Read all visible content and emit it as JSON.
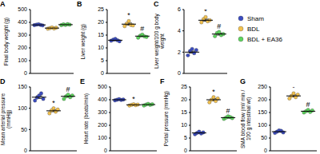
{
  "chart_data": [
    {
      "panel": "A",
      "type": "scatter",
      "y_label": "Final body weight (g)",
      "ylim": [
        0,
        500
      ],
      "yticks": [
        0,
        100,
        200,
        300,
        400,
        500
      ],
      "tick_labels": "y",
      "series": [
        {
          "name": "Sham",
          "color": "#3b4cc0",
          "values": [
            378,
            382,
            385,
            380,
            376
          ],
          "mean": 380,
          "error": 2
        },
        {
          "name": "BDL",
          "color": "#f2c14e",
          "values": [
            350,
            355,
            360,
            352,
            358
          ],
          "mean": 355,
          "error": 2
        },
        {
          "name": "BDL + EA36",
          "color": "#5dd55d",
          "values": [
            378,
            384,
            380,
            386,
            382
          ],
          "mean": 382,
          "error": 2
        }
      ]
    },
    {
      "panel": "B",
      "type": "scatter",
      "y_label": "Liver weight (g)",
      "ylim": [
        0,
        25
      ],
      "yticks": [
        0,
        5,
        10,
        15,
        20,
        25
      ],
      "tick_labels": "y",
      "series": [
        {
          "name": "Sham",
          "color": "#3b4cc0",
          "values": [
            12.8,
            13.2,
            13.5,
            13.0,
            12.6
          ],
          "mean": 13,
          "error": 0.2
        },
        {
          "name": "BDL",
          "color": "#f2c14e",
          "values": [
            18.5,
            19.5,
            20.5,
            19.0,
            18.8
          ],
          "mean": 19.3,
          "error": 0.4,
          "annotation": "*"
        },
        {
          "name": "BDL + EA36",
          "color": "#5dd55d",
          "values": [
            14.0,
            14.8,
            15.2,
            14.5,
            14.3
          ],
          "mean": 14.6,
          "error": 0.2,
          "annotation": "#"
        }
      ]
    },
    {
      "panel": "C",
      "type": "scatter",
      "y_label": "Liver weight/100 g body weight",
      "ylim": [
        0,
        6
      ],
      "yticks": [
        0,
        2,
        4,
        6
      ],
      "tick_labels": "y",
      "legend": "right",
      "series": [
        {
          "name": "Sham",
          "color": "#3b4cc0",
          "values": [
            1.7,
            2.1,
            2.3,
            1.9,
            2.2
          ],
          "mean": 2.0,
          "error": 0.1
        },
        {
          "name": "BDL",
          "color": "#f2c14e",
          "values": [
            4.8,
            5.1,
            5.3,
            4.9,
            5.0
          ],
          "mean": 5.0,
          "error": 0.1,
          "annotation": "*"
        },
        {
          "name": "BDL + EA36",
          "color": "#5dd55d",
          "values": [
            3.5,
            3.8,
            3.9,
            3.6,
            3.7
          ],
          "mean": 3.7,
          "error": 0.1,
          "annotation": "#"
        }
      ]
    },
    {
      "panel": "D",
      "type": "scatter",
      "y_label": "Mean arterial pressure (mmHg)",
      "ylim": [
        0,
        150
      ],
      "yticks": [
        0,
        50,
        100,
        150
      ],
      "tick_labels": "y",
      "series": [
        {
          "name": "Sham",
          "color": "#3b4cc0",
          "values": [
            118,
            125,
            130,
            135,
            122
          ],
          "mean": 126,
          "error": 3
        },
        {
          "name": "BDL",
          "color": "#f2c14e",
          "values": [
            88,
            95,
            100,
            92,
            97
          ],
          "mean": 94,
          "error": 2,
          "annotation": "*"
        },
        {
          "name": "BDL + EA36",
          "color": "#5dd55d",
          "values": [
            122,
            128,
            132,
            126,
            130
          ],
          "mean": 128,
          "error": 2,
          "annotation": "#"
        }
      ]
    },
    {
      "panel": "E",
      "type": "scatter",
      "y_label": "Heart rate (beats/min)",
      "ylim": [
        0,
        500
      ],
      "yticks": [
        0,
        100,
        200,
        300,
        400,
        500
      ],
      "tick_labels": "y",
      "series": [
        {
          "name": "Sham",
          "color": "#3b4cc0",
          "values": [
            395,
            400,
            405,
            398,
            402
          ],
          "mean": 400,
          "error": 2
        },
        {
          "name": "BDL",
          "color": "#f2c14e",
          "values": [
            355,
            360,
            365,
            358,
            362
          ],
          "mean": 360,
          "error": 2,
          "annotation": "*"
        },
        {
          "name": "BDL + EA36",
          "color": "#5dd55d",
          "values": [
            355,
            362,
            368,
            360,
            365
          ],
          "mean": 362,
          "error": 2
        }
      ]
    },
    {
      "panel": "F",
      "type": "scatter",
      "y_label": "Portal pressure (mmHg)",
      "ylim": [
        0,
        25
      ],
      "yticks": [
        0,
        5,
        10,
        15,
        20,
        25
      ],
      "tick_labels": "y",
      "series": [
        {
          "name": "Sham",
          "color": "#3b4cc0",
          "values": [
            6.5,
            7.0,
            7.5,
            6.8,
            7.2
          ],
          "mean": 7,
          "error": 0.2
        },
        {
          "name": "BDL",
          "color": "#f2c14e",
          "values": [
            19,
            20,
            21,
            19.5,
            20.5
          ],
          "mean": 20,
          "error": 0.4,
          "annotation": "*"
        },
        {
          "name": "BDL + EA36",
          "color": "#5dd55d",
          "values": [
            12.5,
            13,
            13.5,
            13.2,
            12.8
          ],
          "mean": 13,
          "error": 0.2,
          "annotation": "#"
        }
      ]
    },
    {
      "panel": "G",
      "type": "scatter",
      "y_label": "SMA blood flow (ml/ min / 100 g intestinal wt)",
      "ylim": [
        0,
        250
      ],
      "yticks": [
        0,
        50,
        100,
        150,
        200,
        250
      ],
      "tick_labels": "y",
      "series": [
        {
          "name": "Sham",
          "color": "#3b4cc0",
          "values": [
            70,
            75,
            80,
            78,
            72
          ],
          "mean": 75,
          "error": 2
        },
        {
          "name": "BDL",
          "color": "#f2c14e",
          "values": [
            205,
            215,
            225,
            210,
            220
          ],
          "mean": 215,
          "error": 4,
          "annotation": "*"
        },
        {
          "name": "BDL + EA36",
          "color": "#5dd55d",
          "values": [
            150,
            155,
            160,
            152,
            158
          ],
          "mean": 155,
          "error": 2,
          "annotation": "#"
        }
      ]
    }
  ]
}
